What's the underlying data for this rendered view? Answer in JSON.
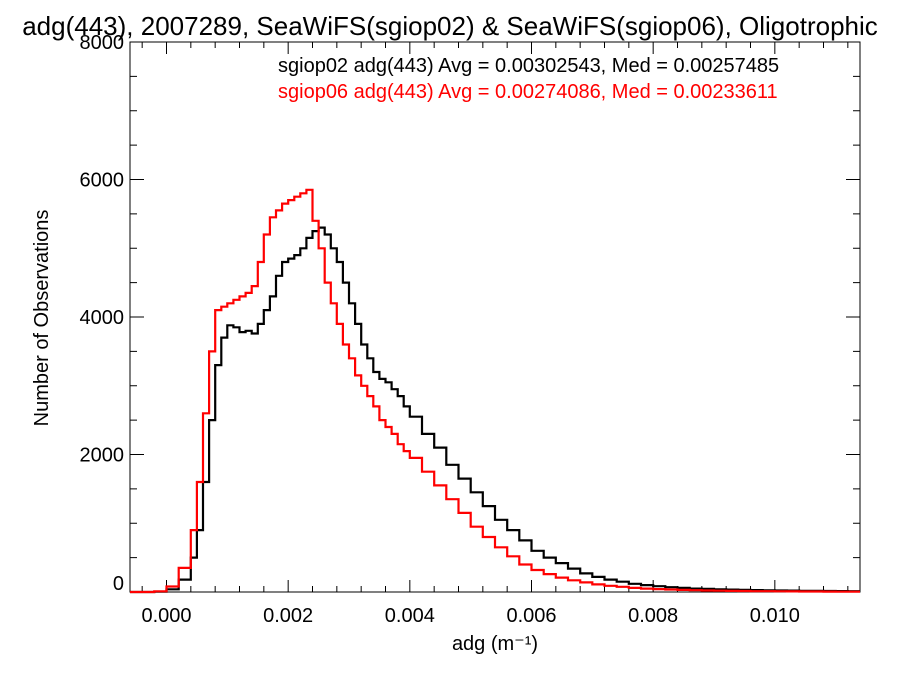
{
  "chart_data": {
    "type": "line",
    "title": "adg(443), 2007289, SeaWiFS(sgiop02) & SeaWiFS(sgiop06), Oligotrophic",
    "xlabel": "adg (m⁻¹)",
    "ylabel": "Number of Observations",
    "xlim": [
      -0.0006,
      0.0114
    ],
    "ylim": [
      0,
      8000
    ],
    "x_ticks": [
      {
        "value": 0.0,
        "label": "0.000"
      },
      {
        "value": 0.002,
        "label": "0.002"
      },
      {
        "value": 0.004,
        "label": "0.004"
      },
      {
        "value": 0.006,
        "label": "0.006"
      },
      {
        "value": 0.008,
        "label": "0.008"
      },
      {
        "value": 0.01,
        "label": "0.010"
      }
    ],
    "y_ticks": [
      {
        "value": 0,
        "label": "0"
      },
      {
        "value": 2000,
        "label": "2000"
      },
      {
        "value": 4000,
        "label": "4000"
      },
      {
        "value": 6000,
        "label": "6000"
      },
      {
        "value": 8000,
        "label": "8000"
      }
    ],
    "grid": false,
    "legend_placement": "top-right",
    "series": [
      {
        "name": "sgiop02 adg(443) Avg = 0.00302543, Med = 0.00257485",
        "color": "#000000",
        "x": [
          -0.0006,
          -0.0004,
          -0.0002,
          0.0,
          0.0002,
          0.0004,
          0.0005,
          0.0006,
          0.0007,
          0.0008,
          0.0009,
          0.001,
          0.0011,
          0.0012,
          0.0013,
          0.0014,
          0.0015,
          0.0016,
          0.0017,
          0.0018,
          0.0019,
          0.002,
          0.0021,
          0.0022,
          0.0023,
          0.0024,
          0.0025,
          0.0026,
          0.0027,
          0.0028,
          0.0029,
          0.003,
          0.0031,
          0.0032,
          0.0033,
          0.0034,
          0.0035,
          0.0036,
          0.0037,
          0.0038,
          0.0039,
          0.004,
          0.0042,
          0.0044,
          0.0046,
          0.0048,
          0.005,
          0.0052,
          0.0054,
          0.0056,
          0.0058,
          0.006,
          0.0062,
          0.0064,
          0.0066,
          0.0068,
          0.007,
          0.0072,
          0.0074,
          0.0076,
          0.0078,
          0.008,
          0.0082,
          0.0084,
          0.0086,
          0.0088,
          0.009,
          0.0092,
          0.0094,
          0.0096,
          0.0098,
          0.01,
          0.0102,
          0.0104,
          0.0106,
          0.0108,
          0.011,
          0.0112
        ],
        "values": [
          0,
          0,
          5,
          40,
          180,
          500,
          900,
          1600,
          2500,
          3300,
          3700,
          3880,
          3850,
          3780,
          3800,
          3760,
          3900,
          4100,
          4300,
          4600,
          4800,
          4850,
          4900,
          5000,
          5150,
          5250,
          5300,
          5200,
          5000,
          4800,
          4500,
          4200,
          3900,
          3600,
          3400,
          3200,
          3100,
          3050,
          2950,
          2850,
          2700,
          2550,
          2300,
          2100,
          1850,
          1650,
          1450,
          1250,
          1050,
          900,
          750,
          600,
          500,
          420,
          340,
          270,
          220,
          180,
          150,
          120,
          100,
          85,
          70,
          60,
          50,
          45,
          40,
          35,
          30,
          28,
          25,
          22,
          20,
          18,
          16,
          15,
          13,
          12
        ]
      },
      {
        "name": "sgiop06 adg(443) Avg = 0.00274086, Med = 0.00233611",
        "color": "#ff0000",
        "x": [
          -0.0006,
          -0.0004,
          -0.0002,
          0.0,
          0.0002,
          0.0004,
          0.0005,
          0.0006,
          0.0007,
          0.0008,
          0.0009,
          0.001,
          0.0011,
          0.0012,
          0.0013,
          0.0014,
          0.0015,
          0.0016,
          0.0017,
          0.0018,
          0.0019,
          0.002,
          0.0021,
          0.0022,
          0.0023,
          0.0024,
          0.0025,
          0.0026,
          0.0027,
          0.0028,
          0.0029,
          0.003,
          0.0031,
          0.0032,
          0.0033,
          0.0034,
          0.0035,
          0.0036,
          0.0037,
          0.0038,
          0.0039,
          0.004,
          0.0042,
          0.0044,
          0.0046,
          0.0048,
          0.005,
          0.0052,
          0.0054,
          0.0056,
          0.0058,
          0.006,
          0.0062,
          0.0064,
          0.0066,
          0.0068,
          0.007,
          0.0072,
          0.0074,
          0.0076,
          0.0078,
          0.008,
          0.0082,
          0.0084,
          0.0086,
          0.0088,
          0.009,
          0.0092,
          0.0094,
          0.0096,
          0.0098,
          0.01,
          0.0102,
          0.0104,
          0.0106,
          0.0108,
          0.011,
          0.0112
        ],
        "values": [
          0,
          0,
          10,
          80,
          350,
          900,
          1600,
          2600,
          3500,
          4100,
          4150,
          4200,
          4250,
          4300,
          4350,
          4450,
          4800,
          5200,
          5450,
          5550,
          5650,
          5700,
          5750,
          5800,
          5850,
          5400,
          5000,
          4500,
          4200,
          3900,
          3600,
          3400,
          3150,
          3000,
          2850,
          2700,
          2500,
          2400,
          2300,
          2150,
          2050,
          1950,
          1750,
          1550,
          1350,
          1150,
          950,
          800,
          650,
          520,
          400,
          320,
          260,
          210,
          170,
          140,
          110,
          90,
          75,
          60,
          50,
          42,
          36,
          30,
          26,
          22,
          19,
          16,
          14,
          12,
          11,
          10,
          9,
          8,
          7,
          6,
          5,
          5
        ]
      }
    ]
  }
}
